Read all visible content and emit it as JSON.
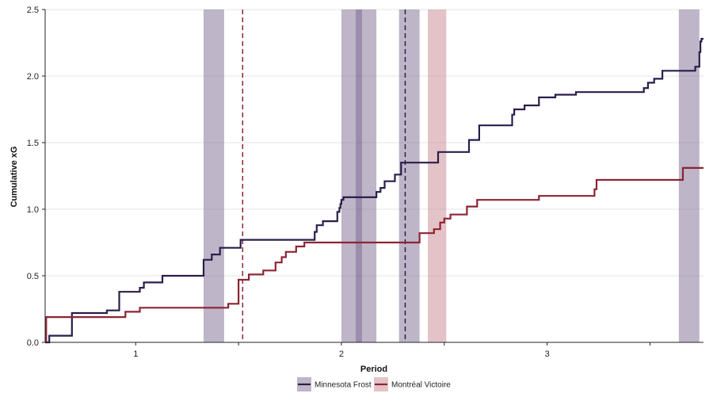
{
  "chart_data": {
    "type": "line",
    "xlabel": "Period",
    "ylabel": "Cumulative xG",
    "xlim": [
      0.56,
      3.76
    ],
    "ylim": [
      0,
      2.5
    ],
    "x_ticks": [
      {
        "value": 1,
        "label": "1"
      },
      {
        "value": 2,
        "label": "2"
      },
      {
        "value": 3,
        "label": "3"
      }
    ],
    "x_minor_ticks": [
      1.5,
      2.5,
      3.5
    ],
    "y_ticks": [
      {
        "value": 0,
        "label": "0.0"
      },
      {
        "value": 0.5,
        "label": "0.5"
      },
      {
        "value": 1,
        "label": "1.0"
      },
      {
        "value": 1.5,
        "label": "1.5"
      },
      {
        "value": 2,
        "label": "2.0"
      },
      {
        "value": 2.5,
        "label": "2.5"
      }
    ],
    "grid": "horizontal",
    "legend_position": "bottom",
    "series": [
      {
        "name": "Minnesota Frost",
        "color": "#2a1e4a",
        "steps": [
          [
            0.56,
            0.0
          ],
          [
            0.58,
            0.05
          ],
          [
            0.65,
            0.05
          ],
          [
            0.69,
            0.22
          ],
          [
            0.86,
            0.24
          ],
          [
            0.92,
            0.38
          ],
          [
            1.02,
            0.41
          ],
          [
            1.04,
            0.45
          ],
          [
            1.13,
            0.5
          ],
          [
            1.33,
            0.62
          ],
          [
            1.37,
            0.66
          ],
          [
            1.41,
            0.71
          ],
          [
            1.51,
            0.77
          ],
          [
            1.87,
            0.83
          ],
          [
            1.88,
            0.88
          ],
          [
            1.91,
            0.91
          ],
          [
            1.98,
            0.98
          ],
          [
            1.99,
            1.01
          ],
          [
            1.995,
            1.04
          ],
          [
            2.0,
            1.07
          ],
          [
            2.01,
            1.09
          ],
          [
            2.17,
            1.13
          ],
          [
            2.19,
            1.16
          ],
          [
            2.21,
            1.21
          ],
          [
            2.26,
            1.26
          ],
          [
            2.29,
            1.35
          ],
          [
            2.47,
            1.43
          ],
          [
            2.62,
            1.52
          ],
          [
            2.67,
            1.63
          ],
          [
            2.83,
            1.71
          ],
          [
            2.84,
            1.75
          ],
          [
            2.89,
            1.78
          ],
          [
            2.96,
            1.84
          ],
          [
            3.04,
            1.86
          ],
          [
            3.14,
            1.88
          ],
          [
            3.47,
            1.91
          ],
          [
            3.49,
            1.95
          ],
          [
            3.52,
            1.98
          ],
          [
            3.56,
            2.04
          ],
          [
            3.72,
            2.07
          ],
          [
            3.74,
            2.18
          ],
          [
            3.745,
            2.26
          ],
          [
            3.75,
            2.28
          ],
          [
            3.76,
            2.28
          ]
        ]
      },
      {
        "name": "Montréal Victoire",
        "color": "#8b2535",
        "steps": [
          [
            0.56,
            0.0
          ],
          [
            0.565,
            0.19
          ],
          [
            0.69,
            0.19
          ],
          [
            0.78,
            0.19
          ],
          [
            0.88,
            0.19
          ],
          [
            0.95,
            0.23
          ],
          [
            1.02,
            0.26
          ],
          [
            1.45,
            0.29
          ],
          [
            1.5,
            0.47
          ],
          [
            1.55,
            0.51
          ],
          [
            1.62,
            0.54
          ],
          [
            1.68,
            0.6
          ],
          [
            1.71,
            0.64
          ],
          [
            1.73,
            0.68
          ],
          [
            1.78,
            0.72
          ],
          [
            1.82,
            0.75
          ],
          [
            1.9,
            0.75
          ],
          [
            2.38,
            0.82
          ],
          [
            2.45,
            0.85
          ],
          [
            2.48,
            0.9
          ],
          [
            2.5,
            0.93
          ],
          [
            2.53,
            0.96
          ],
          [
            2.61,
            1.02
          ],
          [
            2.66,
            1.07
          ],
          [
            2.96,
            1.1
          ],
          [
            3.23,
            1.15
          ],
          [
            3.24,
            1.22
          ],
          [
            3.66,
            1.31
          ],
          [
            3.76,
            1.31
          ]
        ]
      }
    ],
    "highlight_bands": [
      {
        "team": "Minnesota Frost",
        "from": 1.33,
        "to": 1.43
      },
      {
        "team": "Minnesota Frost",
        "from": 2.0,
        "to": 2.17
      },
      {
        "team": "Minnesota Frost",
        "from": 2.07,
        "to": 2.1
      },
      {
        "team": "Minnesota Frost",
        "from": 2.28,
        "to": 2.38
      },
      {
        "team": "Montréal Victoire",
        "from": 2.42,
        "to": 2.51
      },
      {
        "team": "Minnesota Frost",
        "from": 3.64,
        "to": 3.74
      }
    ],
    "event_lines": [
      {
        "team": "Montréal Victoire",
        "x": 1.52
      },
      {
        "team": "Minnesota Frost",
        "x": 2.31
      }
    ]
  }
}
